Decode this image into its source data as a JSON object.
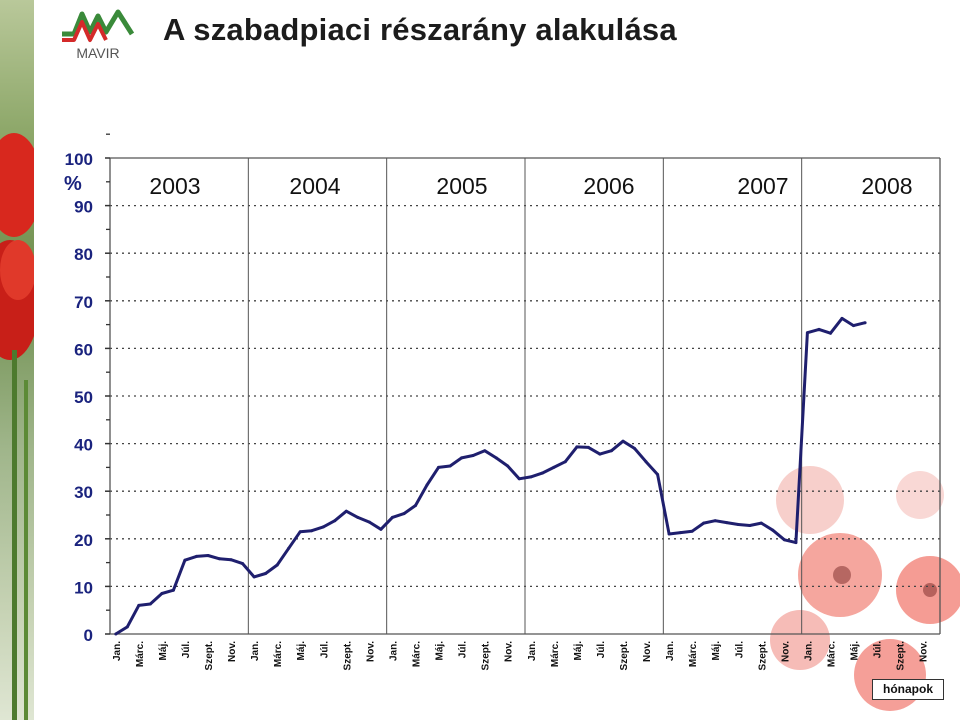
{
  "header": {
    "logo_text": "MAVIR",
    "title": "A szabadpiaci részarány alakulása"
  },
  "colors": {
    "line": "#1f1f6e",
    "logo_green": "#3a8a3a",
    "logo_red": "#d42a2a",
    "flower": "#e8483c"
  },
  "chart_data": {
    "type": "line",
    "title": "A szabadpiaci részarány alakulása",
    "ylabel": "%",
    "xlabel": "hónapok",
    "ylim": [
      0,
      100
    ],
    "yticks": [
      0,
      10,
      20,
      30,
      40,
      50,
      60,
      70,
      80,
      90,
      100
    ],
    "grid": true,
    "legend_position": "bottom-right",
    "years": [
      "2003",
      "2004",
      "2005",
      "2006",
      "2007",
      "2008"
    ],
    "month_tick_labels": [
      "Jan.",
      "Márc.",
      "Máj.",
      "Júl.",
      "Szept.",
      "Nov."
    ],
    "series": [
      {
        "values": [
          0,
          1.5,
          6,
          6.3,
          8.5,
          9.2,
          15.5,
          16.3,
          16.5,
          15.8,
          15.6,
          14.8,
          12,
          12.7,
          14.5,
          18,
          21.5,
          21.7,
          22.5,
          23.8,
          25.8,
          24.5,
          23.5,
          22,
          24.5,
          25.3,
          27,
          31.3,
          35,
          35.3,
          37,
          37.5,
          38.5,
          37,
          35.3,
          32.6,
          33,
          33.8,
          35,
          36.2,
          39.3,
          39.2,
          37.8,
          38.5,
          40.5,
          39,
          36.2,
          33.5,
          21,
          21.3,
          21.6,
          23.3,
          23.8,
          23.4,
          23,
          22.8,
          23.3,
          21.8,
          19.8,
          19.2,
          63.3,
          64,
          63.2,
          66.3,
          64.8,
          65.4
        ]
      }
    ]
  }
}
